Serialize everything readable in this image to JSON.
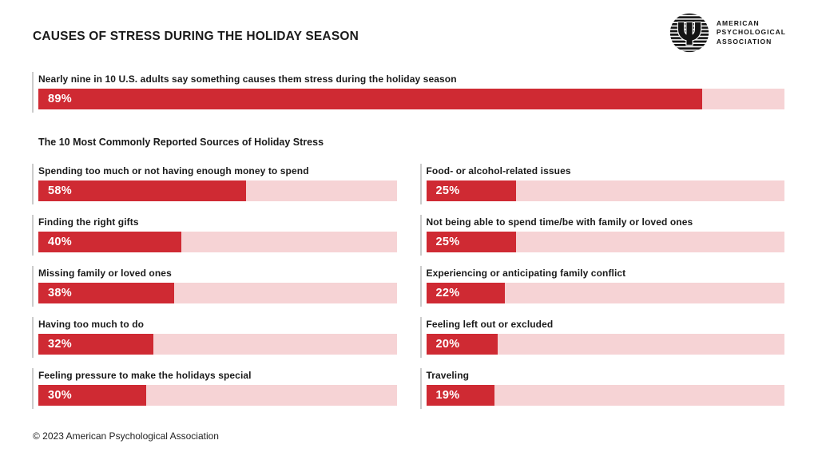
{
  "colors": {
    "red": "#cf2a33",
    "pink": "#f6d3d5",
    "rule": "#cccccc",
    "ink": "#1a1a1a"
  },
  "header": {
    "title": "CAUSES OF STRESS DURING THE HOLIDAY SEASON",
    "logo": {
      "line1": "AMERICAN",
      "line2": "PSYCHOLOGICAL",
      "line3": "ASSOCIATION",
      "psi_glyph": "Ψ"
    }
  },
  "hero": {
    "label": "Nearly nine in 10 U.S. adults say something causes them stress during the holiday season",
    "value": 89,
    "value_label": "89%"
  },
  "subtitle": "The 10 Most Commonly Reported Sources of Holiday Stress",
  "items": [
    {
      "label": "Spending too much or not having enough money to spend",
      "value": 58,
      "value_label": "58%",
      "column": "left"
    },
    {
      "label": "Finding the right gifts",
      "value": 40,
      "value_label": "40%",
      "column": "left"
    },
    {
      "label": "Missing family or loved ones",
      "value": 38,
      "value_label": "38%",
      "column": "left"
    },
    {
      "label": "Having too much to do",
      "value": 32,
      "value_label": "32%",
      "column": "left"
    },
    {
      "label": "Feeling pressure to make the holidays special",
      "value": 30,
      "value_label": "30%",
      "column": "left"
    },
    {
      "label": "Food- or alcohol-related issues",
      "value": 25,
      "value_label": "25%",
      "column": "right"
    },
    {
      "label": "Not being able to spend time/be with family or loved ones",
      "value": 25,
      "value_label": "25%",
      "column": "right"
    },
    {
      "label": "Experiencing or anticipating family conflict",
      "value": 22,
      "value_label": "22%",
      "column": "right"
    },
    {
      "label": "Feeling left out or excluded",
      "value": 20,
      "value_label": "20%",
      "column": "right"
    },
    {
      "label": "Traveling",
      "value": 19,
      "value_label": "19%",
      "column": "right"
    }
  ],
  "footer": "© 2023 American Psychological Association",
  "chart_data": {
    "type": "bar",
    "orientation": "horizontal",
    "title": "CAUSES OF STRESS DURING THE HOLIDAY SEASON",
    "subtitle": "The 10 Most Commonly Reported Sources of Holiday Stress",
    "units": "percent of U.S. adults",
    "xlim": [
      0,
      100
    ],
    "grid": false,
    "legend": "none",
    "hero_stat": {
      "label": "Nearly nine in 10 U.S. adults say something causes them stress during the holiday season",
      "value": 89
    },
    "categories": [
      "Spending too much or not having enough money to spend",
      "Finding the right gifts",
      "Missing family or loved ones",
      "Having too much to do",
      "Feeling pressure to make the holidays special",
      "Food- or alcohol-related issues",
      "Not being able to spend time/be with family or loved ones",
      "Experiencing or anticipating family conflict",
      "Feeling left out or excluded",
      "Traveling"
    ],
    "values": [
      58,
      40,
      38,
      32,
      30,
      25,
      25,
      22,
      20,
      19
    ],
    "bar_color": "#cf2a33",
    "track_color": "#f6d3d5",
    "layout": "two-column, first five categories left column, last five right column",
    "source": "© 2023 American Psychological Association"
  }
}
